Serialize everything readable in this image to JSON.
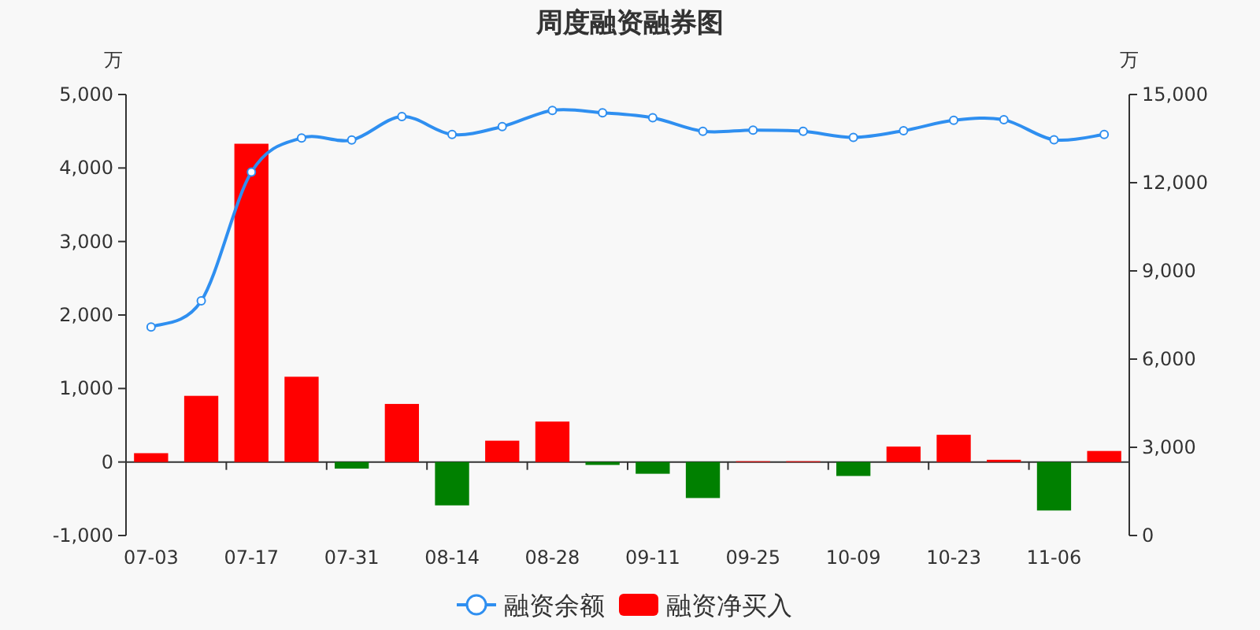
{
  "chart_data": {
    "type": "bar",
    "title": "周度融资融券图",
    "ylabel": "万",
    "y2label": "万",
    "categories": [
      "07-03",
      null,
      "07-17",
      null,
      "07-31",
      null,
      "08-14",
      null,
      "08-28",
      null,
      "09-11",
      null,
      "09-25",
      null,
      "10-09",
      null,
      "10-23",
      null,
      "11-06",
      null
    ],
    "series": [
      {
        "name": "融资余额",
        "type": "line",
        "axis": "y2",
        "color": "#2f8ff0",
        "values": [
          7090,
          7980,
          12360,
          13520,
          13450,
          14250,
          13640,
          13910,
          14460,
          14380,
          14210,
          13750,
          13790,
          13750,
          13540,
          13770,
          14120,
          14140,
          13460,
          13640
        ]
      },
      {
        "name": "融资净买入",
        "color": "#ff0000",
        "values": [
          120,
          900,
          4330,
          1160,
          -90,
          790,
          -590,
          290,
          550,
          -40,
          -160,
          -490,
          10,
          10,
          -190,
          210,
          370,
          30,
          -660,
          150
        ],
        "colors": [
          "#ff0000",
          "#ff0000",
          "#ff0000",
          "#ff0000",
          "#008000",
          "#ff0000",
          "#008000",
          "#ff0000",
          "#ff0000",
          "#008000",
          "#008000",
          "#008000",
          "#ff0000",
          "#ff0000",
          "#008000",
          "#ff0000",
          "#ff0000",
          "#ff0000",
          "#008000",
          "#ff0000"
        ]
      }
    ],
    "ylim": [
      -1000,
      5000
    ],
    "yticks": [
      {
        "value": -1000,
        "label": "-1,000"
      },
      0,
      {
        "value": 1000,
        "label": "1,000"
      },
      {
        "value": 2000,
        "label": "2,000"
      },
      {
        "value": 3000,
        "label": "3,000"
      },
      {
        "value": 4000,
        "label": "4,000"
      },
      {
        "value": 5000,
        "label": "5,000"
      }
    ],
    "y2lim": [
      0,
      15000
    ],
    "y2ticks": [
      0,
      {
        "value": 3000,
        "label": "3,000"
      },
      {
        "value": 6000,
        "label": "6,000"
      },
      {
        "value": 9000,
        "label": "9,000"
      },
      {
        "value": 12000,
        "label": "12,000"
      },
      {
        "value": 15000,
        "label": "15,000"
      }
    ],
    "marker": "circle",
    "legend": "bottom"
  }
}
